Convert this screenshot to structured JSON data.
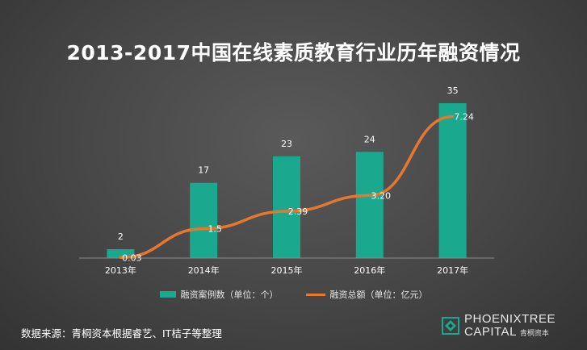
{
  "title": "2013-2017中国在线素质教育行业历年融资情况",
  "colors": {
    "bar": "#1aa98f",
    "line": "#e8772e",
    "axis": "#8a8a8a",
    "label": "#ffffff"
  },
  "chart_data": {
    "type": "bar",
    "categories": [
      "2013年",
      "2014年",
      "2015年",
      "2016年",
      "2017年"
    ],
    "series": [
      {
        "name": "融资案例数（单位：个）",
        "type": "bar",
        "values": [
          2,
          17,
          23,
          24,
          35
        ]
      },
      {
        "name": "融资总额（单位：亿元）",
        "type": "line",
        "values": [
          0.03,
          1.5,
          2.39,
          3.2,
          7.24
        ]
      }
    ],
    "value_labels": {
      "bar": [
        "2",
        "17",
        "23",
        "24",
        "35"
      ],
      "line": [
        "0.03",
        "1.5",
        "2.39",
        "3.20",
        "7.24"
      ]
    },
    "ylim": [
      0,
      35
    ],
    "legend_position": "bottom",
    "grid": false
  },
  "source": "数据来源：青桐资本根据睿艺、IT桔子等整理",
  "brand": {
    "line1": "PHOENIXTREE",
    "line2": "CAPITAL",
    "cn": "青桐资本",
    "logo_icon": "phoenixtree-logo-icon"
  }
}
